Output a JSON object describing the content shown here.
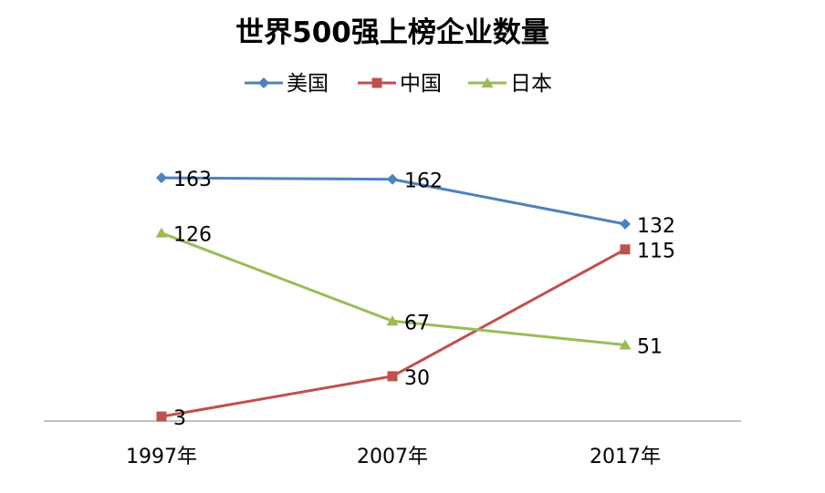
{
  "chart_data": {
    "type": "line",
    "title": "世界500强上榜企业数量",
    "categories": [
      "1997年",
      "2007年",
      "2017年"
    ],
    "series": [
      {
        "name": "美国",
        "values": [
          163,
          162,
          132
        ],
        "color": "#4F81BD",
        "marker": "diamond"
      },
      {
        "name": "中国",
        "values": [
          3,
          30,
          115
        ],
        "color": "#C0504D",
        "marker": "square"
      },
      {
        "name": "日本",
        "values": [
          126,
          67,
          51
        ],
        "color": "#9BBB59",
        "marker": "triangle"
      }
    ],
    "ylim": [
      0,
      200
    ],
    "grid": false,
    "legend_position": "top",
    "data_labels": true
  }
}
